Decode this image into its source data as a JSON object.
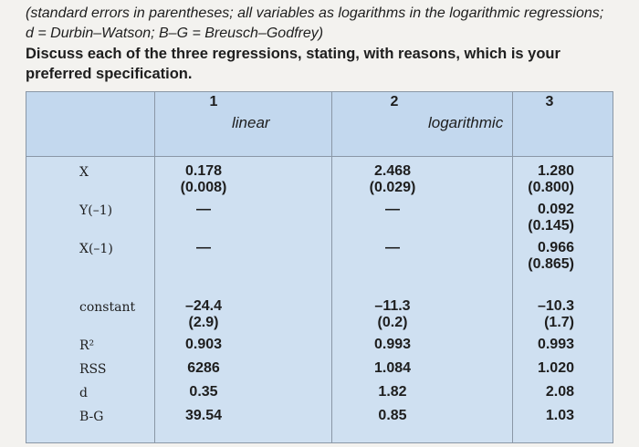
{
  "intro": {
    "lines": [
      "(standard errors in parentheses; all variables as logarithms in the logarithmic regressions;",
      "d = Durbin–Watson; B–G = Breusch–Godfrey)"
    ],
    "question": [
      "Discuss each of the three regressions, stating, with reasons, which is your",
      "preferred specification."
    ]
  },
  "table": {
    "column_numbers": [
      "1",
      "2",
      "3"
    ],
    "column_labels": [
      "linear",
      "logarithmic"
    ],
    "rows": [
      {
        "label": "X",
        "cells": [
          [
            "0.178",
            "(0.008)"
          ],
          [
            "2.468",
            "(0.029)"
          ],
          [
            "1.280",
            "(0.800)"
          ]
        ]
      },
      {
        "label": "Y(–1)",
        "cells": [
          [
            "—"
          ],
          [
            "—"
          ],
          [
            "0.092",
            "(0.145)"
          ]
        ]
      },
      {
        "label": "X(–1)",
        "cells": [
          [
            "—"
          ],
          [
            "—"
          ],
          [
            "0.966",
            "(0.865)"
          ]
        ]
      },
      {
        "label": "constant",
        "cells": [
          [
            "–24.4",
            "(2.9)"
          ],
          [
            "–11.3",
            "(0.2)"
          ],
          [
            "–10.3",
            "(1.7)"
          ]
        ]
      },
      {
        "label": "R²",
        "cells": [
          [
            "0.903"
          ],
          [
            "0.993"
          ],
          [
            "0.993"
          ]
        ]
      },
      {
        "label": "RSS",
        "cells": [
          [
            "6286"
          ],
          [
            "1.084"
          ],
          [
            "1.020"
          ]
        ]
      },
      {
        "label": "d",
        "cells": [
          [
            "0.35"
          ],
          [
            "1.82"
          ],
          [
            "2.08"
          ]
        ]
      },
      {
        "label": "B-G",
        "cells": [
          [
            "39.54"
          ],
          [
            "0.85"
          ],
          [
            "1.03"
          ]
        ]
      }
    ]
  }
}
